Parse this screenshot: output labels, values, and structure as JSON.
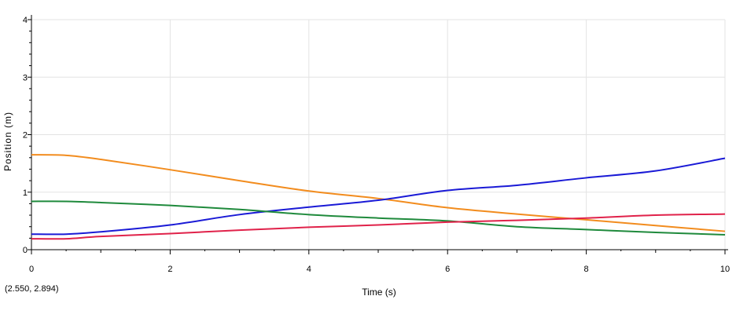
{
  "chart_data": {
    "type": "line",
    "xlabel": "Time (s)",
    "ylabel": "Position (m)",
    "xlim": [
      0,
      10
    ],
    "ylim": [
      0,
      4
    ],
    "x_ticks": [
      0,
      2,
      4,
      6,
      8,
      10
    ],
    "y_ticks": [
      0,
      1,
      2,
      3,
      4
    ],
    "grid": true,
    "legend": "none",
    "coordinate_readout": "(2.550, 2.894)",
    "series": [
      {
        "color": "#f28c1e",
        "x": [
          0,
          0.5,
          1,
          2,
          3,
          4,
          5,
          6,
          7,
          8,
          9,
          10
        ],
        "values": [
          1.65,
          1.64,
          1.57,
          1.39,
          1.2,
          1.02,
          0.89,
          0.73,
          0.62,
          0.52,
          0.42,
          0.32
        ]
      },
      {
        "color": "#1a1ad6",
        "x": [
          0,
          0.5,
          1,
          2,
          3,
          4,
          5,
          6,
          7,
          8,
          9,
          10
        ],
        "values": [
          0.27,
          0.27,
          0.31,
          0.43,
          0.61,
          0.74,
          0.86,
          1.03,
          1.12,
          1.25,
          1.37,
          1.59
        ]
      },
      {
        "color": "#1f8a3c",
        "x": [
          0,
          0.5,
          1,
          2,
          3,
          4,
          5,
          6,
          7,
          8,
          9,
          10
        ],
        "values": [
          0.84,
          0.84,
          0.82,
          0.77,
          0.7,
          0.61,
          0.55,
          0.5,
          0.4,
          0.35,
          0.3,
          0.26
        ]
      },
      {
        "color": "#e0224a",
        "x": [
          0,
          0.5,
          1,
          2,
          3,
          4,
          5,
          6,
          7,
          8,
          9,
          10
        ],
        "values": [
          0.19,
          0.19,
          0.23,
          0.28,
          0.34,
          0.39,
          0.43,
          0.48,
          0.51,
          0.55,
          0.6,
          0.62
        ]
      }
    ]
  }
}
